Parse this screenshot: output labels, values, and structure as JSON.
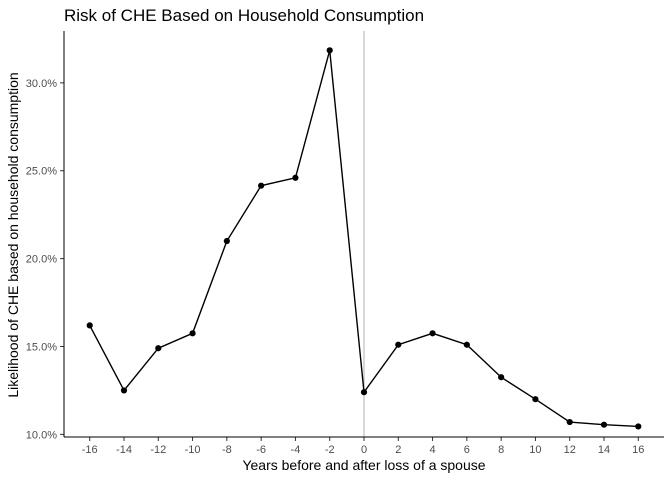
{
  "chart_data": {
    "type": "line",
    "title": "Risk of CHE Based on Household Consumption",
    "xlabel": "Years before and after loss of a spouse",
    "ylabel": "Likelihood of CHE based on household consumption",
    "x": [
      -16,
      -14,
      -12,
      -10,
      -8,
      -6,
      -4,
      -2,
      0,
      2,
      4,
      6,
      8,
      10,
      12,
      14,
      16
    ],
    "series": [
      {
        "values": [
          0.162,
          0.125,
          0.149,
          0.1575,
          0.21,
          0.2415,
          0.246,
          0.3185,
          0.124,
          0.151,
          0.1575,
          0.151,
          0.1325,
          0.12,
          0.107,
          0.1055,
          0.1045
        ]
      }
    ],
    "xticks": [
      -16,
      -14,
      -12,
      -10,
      -8,
      -6,
      -4,
      -2,
      0,
      2,
      4,
      6,
      8,
      10,
      12,
      14,
      16
    ],
    "yticks": [
      0.1,
      0.15,
      0.2,
      0.25,
      0.3
    ],
    "ytick_labels": [
      "10.0%",
      "15.0%",
      "20.0%",
      "25.0%",
      "30.0%"
    ],
    "xlim": [
      -17.5,
      17.5
    ],
    "ylim": [
      0.0985,
      0.3295
    ],
    "reference_line_x": 0,
    "colors": {
      "line": "#000000",
      "points": "#000000",
      "reference_line": "#bdbdbd"
    },
    "grid": false,
    "legend": "none"
  }
}
